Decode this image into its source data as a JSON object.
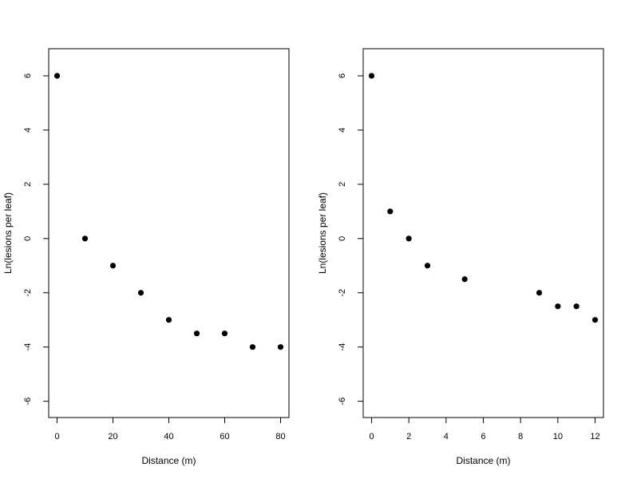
{
  "chart_data": [
    {
      "type": "scatter",
      "xlabel": "Distance (m)",
      "ylabel": "Ln(lesions per leaf)",
      "xlim": [
        -3,
        83
      ],
      "ylim": [
        -6.6,
        7
      ],
      "x_ticks": [
        0,
        20,
        40,
        60,
        80
      ],
      "y_ticks": [
        -6,
        -4,
        -2,
        0,
        2,
        4,
        6
      ],
      "grid": false,
      "series": [
        {
          "x": [
            0,
            10,
            20,
            30,
            40,
            50,
            60,
            70,
            80
          ],
          "y": [
            6,
            0,
            -1,
            -2,
            -3,
            -3.5,
            -3.5,
            -4,
            -4
          ]
        }
      ]
    },
    {
      "type": "scatter",
      "xlabel": "Distance (m)",
      "ylabel": "Ln(lesions per leaf)",
      "xlim": [
        -0.45,
        12.45
      ],
      "ylim": [
        -6.6,
        7
      ],
      "x_ticks": [
        0,
        2,
        4,
        6,
        8,
        10,
        12
      ],
      "y_ticks": [
        -6,
        -4,
        -2,
        0,
        2,
        4,
        6
      ],
      "grid": false,
      "series": [
        {
          "x": [
            0,
            1,
            2,
            3,
            5,
            9,
            10,
            11,
            12
          ],
          "y": [
            6,
            1,
            0,
            -1,
            -1.5,
            -2,
            -2.5,
            -2.5,
            -3
          ]
        }
      ]
    }
  ]
}
